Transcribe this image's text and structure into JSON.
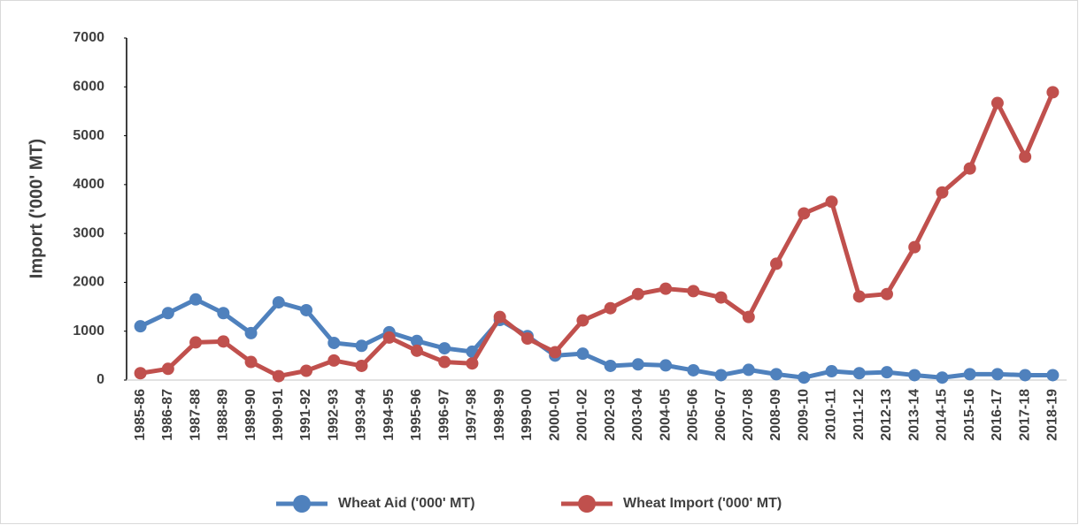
{
  "chart_data": {
    "type": "line",
    "y_label": "Import ('000' MT)",
    "categories": [
      "1985-86",
      "1986-87",
      "1987-88",
      "1988-89",
      "1989-90",
      "1990-91",
      "1991-92",
      "1992-93",
      "1993-94",
      "1994-95",
      "1995-96",
      "1996-97",
      "1997-98",
      "1998-99",
      "1999-00",
      "2000-01",
      "2001-02",
      "2002-03",
      "2003-04",
      "2004-05",
      "2005-06",
      "2006-07",
      "2007-08",
      "2008-09",
      "2009-10",
      "2010-11",
      "2011-12",
      "2012-13",
      "2013-14",
      "2014-15",
      "2015-16",
      "2016-17",
      "2017-18",
      "2018-19"
    ],
    "series": [
      {
        "name": "Wheat Aid ('000' MT)",
        "color": "#4f81bd",
        "values": [
          1100,
          1370,
          1650,
          1370,
          960,
          1590,
          1430,
          760,
          700,
          980,
          800,
          650,
          580,
          1230,
          900,
          500,
          540,
          290,
          320,
          300,
          200,
          100,
          210,
          120,
          50,
          180,
          140,
          160,
          100,
          50,
          120,
          120,
          100,
          100
        ]
      },
      {
        "name": "Wheat Import ('000' MT)",
        "color": "#c0504d",
        "values": [
          140,
          230,
          770,
          790,
          370,
          80,
          190,
          400,
          290,
          870,
          600,
          370,
          340,
          1290,
          850,
          570,
          1220,
          1470,
          1760,
          1870,
          1820,
          1690,
          1290,
          2380,
          3410,
          3650,
          1710,
          1760,
          2720,
          3840,
          4330,
          5670,
          4570,
          5890
        ]
      }
    ],
    "ylim": [
      0,
      7000
    ],
    "yticks": [
      0,
      1000,
      2000,
      3000,
      4000,
      5000,
      6000,
      7000
    ],
    "grid": false,
    "legend": "bottom"
  }
}
